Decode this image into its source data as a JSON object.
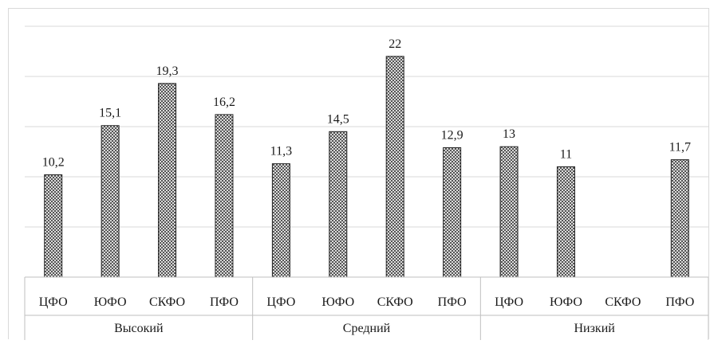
{
  "chart_data": {
    "type": "bar",
    "groups": [
      "Высокий",
      "Средний",
      "Низкий"
    ],
    "categories": [
      "ЦФО",
      "ЮФО",
      "СКФО",
      "ПФО"
    ],
    "series": [
      {
        "values": [
          10.2,
          15.1,
          19.3,
          16.2
        ]
      },
      {
        "values": [
          11.3,
          14.5,
          22,
          12.9
        ]
      },
      {
        "values": [
          13,
          11,
          null,
          11.7
        ]
      }
    ],
    "data_labels": [
      [
        "10,2",
        "15,1",
        "19,3",
        "16,2"
      ],
      [
        "11,3",
        "14,5",
        "22",
        "12,9"
      ],
      [
        "13",
        "11",
        "",
        "11,7"
      ]
    ],
    "ylim": [
      0,
      25
    ],
    "grid": true,
    "legend": "none",
    "colors": {
      "bar_fill": "#ffffff",
      "bar_pattern": "#333333",
      "bar_stroke": "#222222",
      "grid": "#d9d9d9",
      "axis": "#bfbfbf"
    }
  }
}
